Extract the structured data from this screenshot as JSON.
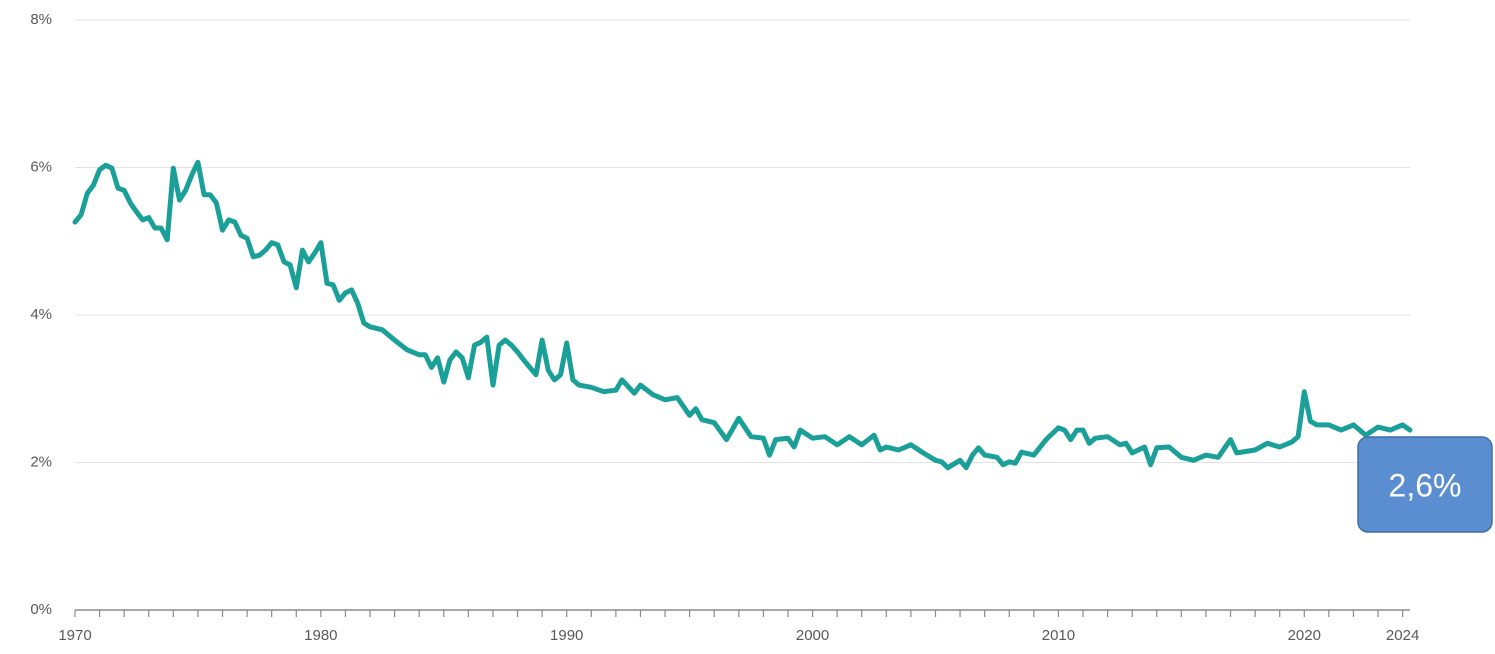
{
  "chart_data": {
    "type": "line",
    "annotation": "2,6%",
    "xlim": [
      1970,
      2024.3
    ],
    "xticks": [
      1970,
      1980,
      1990,
      2000,
      2010,
      2020,
      2024
    ],
    "xticks_minor": [
      1971,
      1972,
      1973,
      1974,
      1975,
      1976,
      1977,
      1978,
      1979,
      1981,
      1982,
      1983,
      1984,
      1985,
      1986,
      1987,
      1988,
      1989,
      1991,
      1992,
      1993,
      1994,
      1995,
      1996,
      1997,
      1998,
      1999,
      2001,
      2002,
      2003,
      2004,
      2005,
      2006,
      2007,
      2008,
      2009,
      2011,
      2012,
      2013,
      2014,
      2015,
      2016,
      2017,
      2018,
      2019,
      2021,
      2022,
      2023
    ],
    "ylim": [
      0,
      8
    ],
    "yticks": [
      {
        "value": 0,
        "label": "0%"
      },
      {
        "value": 2,
        "label": "2%"
      },
      {
        "value": 4,
        "label": "4%"
      },
      {
        "value": 6,
        "label": "6%"
      },
      {
        "value": 8,
        "label": "8%"
      }
    ],
    "grid": true,
    "series": [
      {
        "color": "#1aa098",
        "x": [
          1970,
          1970.25,
          1970.5,
          1970.75,
          1971,
          1971.25,
          1971.5,
          1971.75,
          1972,
          1972.25,
          1972.5,
          1972.75,
          1973,
          1973.25,
          1973.5,
          1973.75,
          1974,
          1974.25,
          1974.5,
          1974.75,
          1975,
          1975.25,
          1975.5,
          1975.75,
          1976,
          1976.25,
          1976.5,
          1976.75,
          1977,
          1977.25,
          1977.5,
          1977.75,
          1978,
          1978.25,
          1978.5,
          1978.75,
          1979,
          1979.25,
          1979.5,
          1979.75,
          1980,
          1980.25,
          1980.5,
          1980.75,
          1981,
          1981.25,
          1981.5,
          1981.75,
          1982,
          1982.5,
          1983,
          1983.5,
          1984,
          1984.25,
          1984.5,
          1984.75,
          1985,
          1985.25,
          1985.5,
          1985.75,
          1986,
          1986.25,
          1986.5,
          1986.75,
          1987,
          1987.25,
          1987.5,
          1987.75,
          1988,
          1988.25,
          1988.5,
          1988.75,
          1989,
          1989.25,
          1989.5,
          1989.75,
          1990,
          1990.25,
          1990.5,
          1991,
          1991.5,
          1992,
          1992.25,
          1992.75,
          1993,
          1993.5,
          1994,
          1994.5,
          1995,
          1995.25,
          1995.5,
          1996,
          1996.5,
          1997,
          1997.5,
          1998,
          1998.25,
          1998.5,
          1999,
          1999.25,
          1999.5,
          2000,
          2000.5,
          2001,
          2001.5,
          2002,
          2002.5,
          2002.75,
          2003,
          2003.5,
          2004,
          2004.5,
          2005,
          2005.25,
          2005.5,
          2006,
          2006.25,
          2006.5,
          2006.75,
          2007,
          2007.5,
          2007.75,
          2008,
          2008.25,
          2008.5,
          2009,
          2009.5,
          2010,
          2010.25,
          2010.5,
          2010.75,
          2011,
          2011.25,
          2011.5,
          2012,
          2012.5,
          2012.75,
          2013,
          2013.5,
          2013.75,
          2014,
          2014.5,
          2015,
          2015.5,
          2016,
          2016.5,
          2017,
          2017.25,
          2018,
          2018.5,
          2019,
          2019.5,
          2019.75,
          2020,
          2020.25,
          2020.5,
          2021,
          2021.5,
          2022,
          2022.5,
          2023,
          2023.5,
          2024,
          2024.3
        ],
        "values": [
          5.26,
          5.36,
          5.65,
          5.76,
          5.97,
          6.03,
          5.99,
          5.72,
          5.69,
          5.52,
          5.4,
          5.29,
          5.32,
          5.18,
          5.18,
          5.02,
          5.99,
          5.56,
          5.69,
          5.9,
          6.07,
          5.63,
          5.63,
          5.52,
          5.15,
          5.29,
          5.26,
          5.08,
          5.04,
          4.79,
          4.81,
          4.88,
          4.98,
          4.95,
          4.72,
          4.68,
          4.37,
          4.88,
          4.72,
          4.84,
          4.98,
          4.43,
          4.41,
          4.2,
          4.3,
          4.34,
          4.16,
          3.89,
          3.84,
          3.8,
          3.66,
          3.53,
          3.46,
          3.46,
          3.29,
          3.42,
          3.09,
          3.39,
          3.5,
          3.42,
          3.15,
          3.59,
          3.63,
          3.7,
          3.05,
          3.59,
          3.66,
          3.59,
          3.5,
          3.39,
          3.29,
          3.19,
          3.66,
          3.25,
          3.12,
          3.19,
          3.62,
          3.12,
          3.05,
          3.02,
          2.96,
          2.98,
          3.12,
          2.94,
          3.05,
          2.92,
          2.85,
          2.88,
          2.64,
          2.73,
          2.58,
          2.54,
          2.31,
          2.6,
          2.35,
          2.33,
          2.1,
          2.31,
          2.33,
          2.21,
          2.44,
          2.33,
          2.35,
          2.24,
          2.35,
          2.24,
          2.37,
          2.17,
          2.21,
          2.17,
          2.24,
          2.13,
          2.03,
          2.01,
          1.93,
          2.03,
          1.93,
          2.1,
          2.2,
          2.1,
          2.07,
          1.97,
          2.01,
          1.99,
          2.14,
          2.1,
          2.31,
          2.47,
          2.44,
          2.31,
          2.44,
          2.44,
          2.26,
          2.33,
          2.35,
          2.24,
          2.26,
          2.13,
          2.21,
          1.97,
          2.2,
          2.21,
          2.07,
          2.03,
          2.1,
          2.07,
          2.31,
          2.13,
          2.17,
          2.26,
          2.21,
          2.28,
          2.35,
          2.96,
          2.56,
          2.51,
          2.51,
          2.44,
          2.51,
          2.37,
          2.48,
          2.44,
          2.51,
          2.44
        ]
      }
    ]
  }
}
